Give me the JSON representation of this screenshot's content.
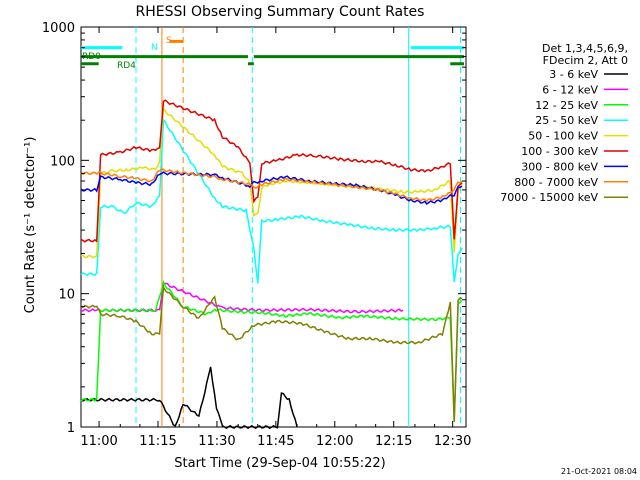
{
  "chart_data": {
    "type": "line",
    "title": "RHESSI Observing Summary Count Rates",
    "xlabel": "Start Time (29-Sep-04 10:55:22)",
    "ylabel": "Count Rate (s⁻¹ detector⁻¹)",
    "y_scale": "log",
    "ylim": [
      1,
      1000
    ],
    "xlim_minutes_after_start": [
      0,
      98
    ],
    "x_ticks": [
      {
        "label": "11:00",
        "t": 4.6
      },
      {
        "label": "11:15",
        "t": 19.6
      },
      {
        "label": "11:30",
        "t": 34.6
      },
      {
        "label": "11:45",
        "t": 49.6
      },
      {
        "label": "12:00",
        "t": 64.6
      },
      {
        "label": "12:15",
        "t": 79.6
      },
      {
        "label": "12:30",
        "t": 94.6
      }
    ],
    "y_ticks": [
      {
        "label": "1",
        "v": 1
      },
      {
        "label": "10",
        "v": 10
      },
      {
        "label": "100",
        "v": 100
      },
      {
        "label": "1000",
        "v": 1000
      }
    ],
    "legend": {
      "placement": "right",
      "header": [
        "Det 1,3,4,5,6,9,",
        "FDecim 2, Att 0"
      ],
      "entries": [
        {
          "label": "3 - 6 keV",
          "color": "#000000"
        },
        {
          "label": "6 - 12 keV",
          "color": "#ff00ff"
        },
        {
          "label": "12 - 25 keV",
          "color": "#00ff00"
        },
        {
          "label": "25 - 50 keV",
          "color": "#00ffff"
        },
        {
          "label": "50 - 100 keV",
          "color": "#e0e000"
        },
        {
          "label": "100 - 300 keV",
          "color": "#e00000"
        },
        {
          "label": "300 - 800 keV",
          "color": "#0000ff"
        },
        {
          "label": "800 - 7000 keV",
          "color": "#ff8000"
        },
        {
          "label": "7000 - 15000 keV",
          "color": "#808000"
        }
      ]
    },
    "series": [
      {
        "name": "3 - 6 keV",
        "color": "#000000",
        "points": [
          [
            0,
            1.6
          ],
          [
            20,
            1.6
          ],
          [
            24,
            1.0
          ],
          [
            26,
            1.5
          ],
          [
            30,
            1.2
          ],
          [
            33,
            2.8
          ],
          [
            34.5,
            1.4
          ],
          [
            36,
            1.0
          ],
          [
            50,
            1.0
          ],
          [
            51,
            1.8
          ],
          [
            53,
            1.6
          ],
          [
            55,
            1.0
          ]
        ]
      },
      {
        "name": "6 - 12 keV",
        "color": "#ff00ff",
        "points": [
          [
            0,
            7.5
          ],
          [
            4,
            7.5
          ],
          [
            20,
            7.5
          ],
          [
            21,
            12
          ],
          [
            36,
            7.8
          ],
          [
            46,
            7.5
          ],
          [
            58,
            7.6
          ],
          [
            70,
            7.3
          ],
          [
            82,
            7.5
          ]
        ]
      },
      {
        "name": "12 - 25 keV",
        "color": "#00ff00",
        "points": [
          [
            0,
            1.6
          ],
          [
            4,
            1.6
          ],
          [
            5,
            7.5
          ],
          [
            19,
            7.5
          ],
          [
            21,
            12
          ],
          [
            26,
            8
          ],
          [
            32,
            7
          ],
          [
            34,
            7.6
          ],
          [
            40,
            7.3
          ],
          [
            46,
            7.2
          ],
          [
            52,
            6.8
          ],
          [
            58,
            7.1
          ],
          [
            66,
            6.6
          ],
          [
            72,
            6.8
          ],
          [
            80,
            6.5
          ],
          [
            90,
            6.4
          ],
          [
            94,
            6.6
          ],
          [
            95,
            1.1
          ],
          [
            96,
            8.5
          ],
          [
            97,
            8.8
          ]
        ]
      },
      {
        "name": "25 - 50 keV",
        "color": "#00ffff",
        "points": [
          [
            0,
            14
          ],
          [
            4,
            14
          ],
          [
            5,
            45
          ],
          [
            8,
            45
          ],
          [
            11,
            40
          ],
          [
            14,
            48
          ],
          [
            18,
            45
          ],
          [
            20,
            55
          ],
          [
            21,
            200
          ],
          [
            34,
            52
          ],
          [
            36,
            45
          ],
          [
            42,
            42
          ],
          [
            44,
            22
          ],
          [
            45,
            12
          ],
          [
            46,
            35
          ],
          [
            50,
            36
          ],
          [
            56,
            38
          ],
          [
            62,
            35
          ],
          [
            68,
            33
          ],
          [
            74,
            31
          ],
          [
            80,
            30
          ],
          [
            86,
            30
          ],
          [
            90,
            31
          ],
          [
            94,
            32
          ],
          [
            95,
            12
          ],
          [
            96,
            20
          ],
          [
            97,
            22
          ]
        ]
      },
      {
        "name": "50 - 100 keV",
        "color": "#e0e000",
        "points": [
          [
            0,
            19
          ],
          [
            4,
            19
          ],
          [
            5,
            80
          ],
          [
            8,
            83
          ],
          [
            12,
            85
          ],
          [
            16,
            88
          ],
          [
            19,
            85
          ],
          [
            20,
            100
          ],
          [
            21,
            240
          ],
          [
            34,
            110
          ],
          [
            36,
            90
          ],
          [
            41,
            80
          ],
          [
            43,
            68
          ],
          [
            44,
            38
          ],
          [
            45,
            40
          ],
          [
            46,
            62
          ],
          [
            48,
            66
          ],
          [
            52,
            70
          ],
          [
            58,
            68
          ],
          [
            64,
            66
          ],
          [
            70,
            64
          ],
          [
            76,
            61
          ],
          [
            82,
            58
          ],
          [
            86,
            58
          ],
          [
            90,
            60
          ],
          [
            94,
            70
          ],
          [
            95,
            20
          ],
          [
            96,
            60
          ],
          [
            97,
            67
          ]
        ]
      },
      {
        "name": "100 - 300 keV",
        "color": "#e00000",
        "points": [
          [
            0,
            25
          ],
          [
            4,
            25
          ],
          [
            5,
            110
          ],
          [
            10,
            115
          ],
          [
            14,
            125
          ],
          [
            18,
            118
          ],
          [
            20,
            125
          ],
          [
            21,
            280
          ],
          [
            34,
            200
          ],
          [
            36,
            150
          ],
          [
            40,
            125
          ],
          [
            43,
            95
          ],
          [
            44,
            50
          ],
          [
            45,
            52
          ],
          [
            46,
            95
          ],
          [
            50,
            100
          ],
          [
            55,
            110
          ],
          [
            60,
            108
          ],
          [
            66,
            102
          ],
          [
            72,
            98
          ],
          [
            76,
            98
          ],
          [
            80,
            92
          ],
          [
            84,
            85
          ],
          [
            88,
            83
          ],
          [
            92,
            90
          ],
          [
            94,
            95
          ],
          [
            95,
            25
          ],
          [
            96,
            65
          ],
          [
            97,
            68
          ]
        ]
      },
      {
        "name": "300 - 800 keV",
        "color": "#0000ff",
        "points": [
          [
            0,
            60
          ],
          [
            4,
            60
          ],
          [
            5,
            75
          ],
          [
            10,
            72
          ],
          [
            14,
            68
          ],
          [
            18,
            66
          ],
          [
            20,
            80
          ],
          [
            34,
            78
          ],
          [
            36,
            74
          ],
          [
            43,
            64
          ],
          [
            44,
            68
          ],
          [
            46,
            70
          ],
          [
            52,
            75
          ],
          [
            58,
            70
          ],
          [
            64,
            67
          ],
          [
            70,
            65
          ],
          [
            76,
            60
          ],
          [
            80,
            55
          ],
          [
            84,
            50
          ],
          [
            88,
            48
          ],
          [
            92,
            50
          ],
          [
            94,
            55
          ],
          [
            95,
            55
          ],
          [
            96,
            62
          ],
          [
            97,
            64
          ]
        ]
      },
      {
        "name": "800 - 7000 keV",
        "color": "#ff8000",
        "points": [
          [
            0,
            80
          ],
          [
            4,
            80
          ],
          [
            5,
            80
          ],
          [
            10,
            76
          ],
          [
            14,
            73
          ],
          [
            18,
            70
          ],
          [
            20,
            85
          ],
          [
            34,
            75
          ],
          [
            36,
            72
          ],
          [
            43,
            66
          ],
          [
            44,
            62
          ],
          [
            46,
            66
          ],
          [
            52,
            72
          ],
          [
            58,
            69
          ],
          [
            64,
            66
          ],
          [
            70,
            63
          ],
          [
            76,
            60
          ],
          [
            80,
            56
          ],
          [
            84,
            52
          ],
          [
            88,
            50
          ],
          [
            92,
            53
          ],
          [
            94,
            58
          ],
          [
            95,
            60
          ],
          [
            96,
            68
          ],
          [
            97,
            70
          ]
        ]
      },
      {
        "name": "7000 - 15000 keV",
        "color": "#808000",
        "points": [
          [
            0,
            8
          ],
          [
            4,
            8
          ],
          [
            5,
            7
          ],
          [
            10,
            6.8
          ],
          [
            14,
            6.2
          ],
          [
            18,
            5
          ],
          [
            20,
            5
          ],
          [
            21,
            11
          ],
          [
            26,
            8
          ],
          [
            30,
            6.5
          ],
          [
            34,
            9.5
          ],
          [
            36,
            5.5
          ],
          [
            40,
            4.5
          ],
          [
            44,
            5.8
          ],
          [
            50,
            6.2
          ],
          [
            56,
            6
          ],
          [
            62,
            5.2
          ],
          [
            68,
            4.6
          ],
          [
            74,
            4.6
          ],
          [
            80,
            4.3
          ],
          [
            86,
            4.3
          ],
          [
            92,
            5
          ],
          [
            94,
            8.5
          ],
          [
            95,
            1.1
          ],
          [
            96,
            9
          ],
          [
            97,
            9.2
          ]
        ]
      }
    ],
    "vertical_markers": [
      {
        "t": 20.6,
        "color": "#ff8000",
        "style": "solid"
      },
      {
        "t": 26.0,
        "color": "#ff8000",
        "style": "dashed"
      },
      {
        "t": 14.0,
        "color": "#00ffff",
        "style": "dashed"
      },
      {
        "t": 43.6,
        "color": "#00ffff",
        "style": "dashed"
      },
      {
        "t": 83.4,
        "color": "#00ffff",
        "style": "solid"
      },
      {
        "t": 96.6,
        "color": "#00ffff",
        "style": "dashed"
      }
    ],
    "status_bars": [
      {
        "color": "#00ffff",
        "segments": [
          [
            0,
            10.5
          ],
          [
            84,
            97.5
          ]
        ],
        "y_value": 700
      },
      {
        "color": "#ff8000",
        "segments": [
          [
            22.5,
            26
          ]
        ],
        "y_value": 780
      },
      {
        "color": "#008000",
        "segments": [
          [
            0,
            42.5
          ],
          [
            44,
            97.5
          ]
        ],
        "y_value": 600
      },
      {
        "color": "#008000",
        "segments": [
          [
            0,
            4.5
          ],
          [
            42.5,
            44
          ],
          [
            94,
            97.5
          ]
        ],
        "y_value": 530
      }
    ],
    "annotations": [
      {
        "text": "RD0",
        "color": "#008000"
      },
      {
        "text": "RD4",
        "color": "#008000"
      },
      {
        "text": "N",
        "color": "#00ffff"
      },
      {
        "text": "S",
        "color": "#ff8000"
      }
    ]
  },
  "timestamp": "21-Oct-2021 08:04"
}
